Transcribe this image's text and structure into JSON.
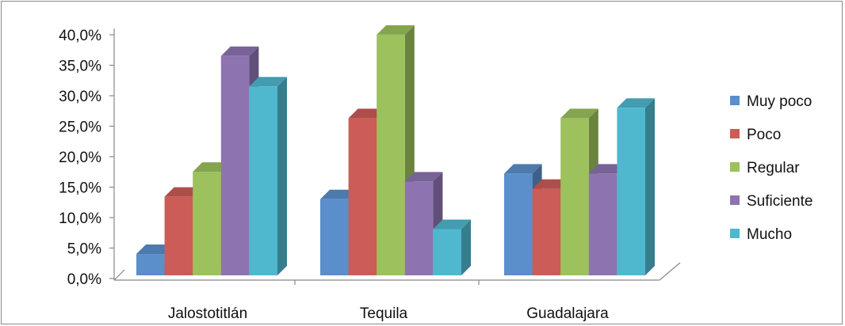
{
  "chart_data": {
    "type": "bar",
    "style": "3d-clustered-column",
    "categories": [
      "Jalostotitlán",
      "Tequila",
      "Guadalajara"
    ],
    "series": [
      {
        "name": "Muy poco",
        "color": "#5b8fcb",
        "values": [
          3.5,
          12.5,
          16.7
        ]
      },
      {
        "name": "Poco",
        "color": "#cc5c57",
        "values": [
          12.9,
          25.8,
          14.2
        ]
      },
      {
        "name": "Regular",
        "color": "#9cc15d",
        "values": [
          17.0,
          39.5,
          25.8
        ]
      },
      {
        "name": "Suficiente",
        "color": "#8d74b0",
        "values": [
          36.0,
          15.4,
          16.7
        ]
      },
      {
        "name": "Mucho",
        "color": "#4fb8cf",
        "values": [
          31.0,
          7.6,
          27.5
        ]
      }
    ],
    "yticks": [
      "0,0%",
      "5,0%",
      "10,0%",
      "15,0%",
      "20,0%",
      "25,0%",
      "30,0%",
      "35,0%",
      "40,0%"
    ],
    "ylim": [
      0,
      40
    ],
    "grid": false,
    "legend_position": "right"
  }
}
